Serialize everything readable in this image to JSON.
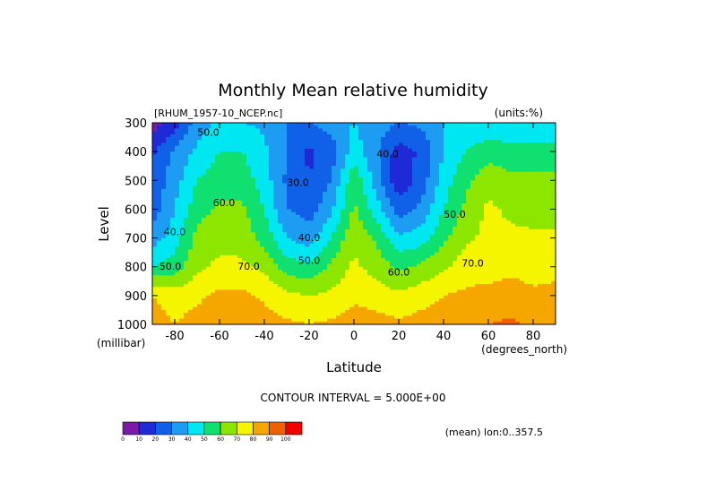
{
  "chart_data": {
    "type": "heatmap",
    "title": "Monthly Mean relative humidity",
    "dataset_label": "[RHUM_1957-10_NCEP.nc]",
    "units_label": "(units:%)",
    "xlabel": "Latitude",
    "ylabel": "Level",
    "x_unit_label": "(degrees_north)",
    "y_unit_label": "(millibar)",
    "xlim": [
      -90,
      90
    ],
    "ylim": [
      1000,
      300
    ],
    "x_ticks": [
      {
        "value": -80,
        "label": "-80"
      },
      {
        "value": -60,
        "label": "-60"
      },
      {
        "value": -40,
        "label": "-40"
      },
      {
        "value": -20,
        "label": "-20"
      },
      {
        "value": 0,
        "label": "0"
      },
      {
        "value": 20,
        "label": "20"
      },
      {
        "value": 40,
        "label": "40"
      },
      {
        "value": 60,
        "label": "60"
      },
      {
        "value": 80,
        "label": "80"
      }
    ],
    "y_ticks": [
      {
        "value": 300,
        "label": "300"
      },
      {
        "value": 400,
        "label": "400"
      },
      {
        "value": 500,
        "label": "500"
      },
      {
        "value": 600,
        "label": "600"
      },
      {
        "value": 700,
        "label": "700"
      },
      {
        "value": 800,
        "label": "800"
      },
      {
        "value": 900,
        "label": "900"
      },
      {
        "value": 1000,
        "label": "1000"
      }
    ],
    "contour_interval_text": "CONTOUR INTERVAL = 5.000E+00",
    "mean_text": "(mean) lon:0..357.5",
    "contour_labels": [
      {
        "text": "50.0",
        "lat": -65,
        "lev": 345
      },
      {
        "text": "60.0",
        "lat": -58,
        "lev": 590
      },
      {
        "text": "40.0",
        "lat": -80,
        "lev": 690
      },
      {
        "text": "50.0",
        "lat": -82,
        "lev": 810
      },
      {
        "text": "70.0",
        "lat": -47,
        "lev": 810
      },
      {
        "text": "30.0",
        "lat": -25,
        "lev": 520
      },
      {
        "text": "40.0",
        "lat": -20,
        "lev": 710
      },
      {
        "text": "50.0",
        "lat": -20,
        "lev": 790
      },
      {
        "text": "40.0",
        "lat": 15,
        "lev": 420
      },
      {
        "text": "60.0",
        "lat": 20,
        "lev": 830
      },
      {
        "text": "50.0",
        "lat": 45,
        "lev": 630
      },
      {
        "text": "70.0",
        "lat": 53,
        "lev": 800
      }
    ],
    "field": {
      "lats": [
        -90,
        -80,
        -70,
        -60,
        -50,
        -40,
        -30,
        -20,
        -10,
        0,
        10,
        20,
        30,
        40,
        50,
        60,
        70,
        80,
        90
      ],
      "levels": [
        300,
        400,
        500,
        600,
        700,
        800,
        900,
        1000
      ],
      "values": [
        [
          5,
          15,
          35,
          42,
          40,
          38,
          30,
          30,
          35,
          40,
          35,
          30,
          32,
          40,
          45,
          40,
          40,
          40,
          40
        ],
        [
          18,
          32,
          42,
          50,
          50,
          42,
          30,
          18,
          25,
          45,
          32,
          15,
          22,
          40,
          50,
          56,
          55,
          55,
          55
        ],
        [
          22,
          36,
          50,
          56,
          56,
          45,
          28,
          20,
          30,
          58,
          35,
          12,
          24,
          45,
          58,
          66,
          62,
          62,
          62
        ],
        [
          25,
          40,
          56,
          62,
          62,
          50,
          30,
          25,
          38,
          62,
          45,
          25,
          32,
          50,
          62,
          72,
          68,
          66,
          66
        ],
        [
          35,
          45,
          63,
          67,
          66,
          56,
          40,
          35,
          50,
          68,
          58,
          42,
          45,
          58,
          68,
          73,
          72,
          72,
          72
        ],
        [
          50,
          55,
          68,
          72,
          72,
          68,
          55,
          52,
          62,
          72,
          66,
          58,
          62,
          68,
          75,
          76,
          78,
          76,
          78
        ],
        [
          80,
          75,
          78,
          82,
          82,
          78,
          72,
          70,
          72,
          78,
          75,
          72,
          76,
          80,
          82,
          83,
          84,
          82,
          82
        ],
        [
          85,
          80,
          84,
          86,
          88,
          85,
          82,
          80,
          82,
          85,
          84,
          82,
          84,
          86,
          88,
          90,
          92,
          88,
          85
        ]
      ]
    },
    "colorbar": {
      "colors": [
        "#7a1aa8",
        "#1f2ad6",
        "#1160e8",
        "#1d9cf2",
        "#00e7f2",
        "#10e070",
        "#8ce600",
        "#f5f500",
        "#f5a700",
        "#f06000",
        "#f00000"
      ],
      "labels": [
        "0",
        "10",
        "20",
        "30",
        "40",
        "50",
        "60",
        "70",
        "80",
        "90",
        "100"
      ]
    }
  }
}
